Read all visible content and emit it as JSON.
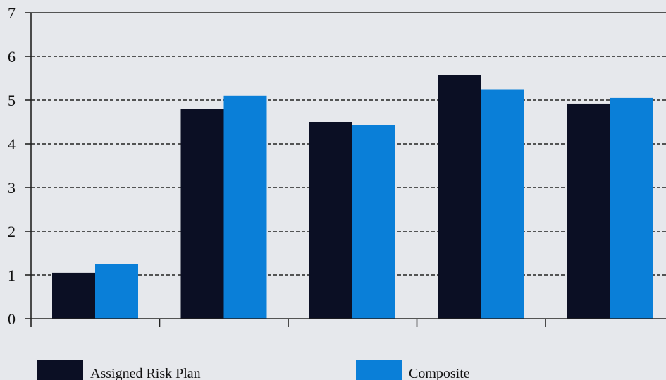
{
  "chart_data": {
    "type": "bar",
    "title": "",
    "xlabel": "",
    "ylabel": "",
    "ylim": [
      0,
      7
    ],
    "y_ticks": [
      0,
      1,
      2,
      3,
      4,
      5,
      6,
      7
    ],
    "grid": "horizontal-dashed",
    "legend_position": "bottom",
    "categories": [
      "",
      "",
      "",
      "",
      ""
    ],
    "series": [
      {
        "name": "Assigned Risk Plan",
        "color": "#0b0f24",
        "values": [
          1.05,
          4.8,
          4.5,
          5.58,
          4.92
        ]
      },
      {
        "name": "Composite",
        "color": "#0a7fd8",
        "values": [
          1.25,
          5.1,
          4.42,
          5.25,
          5.05
        ]
      }
    ]
  }
}
